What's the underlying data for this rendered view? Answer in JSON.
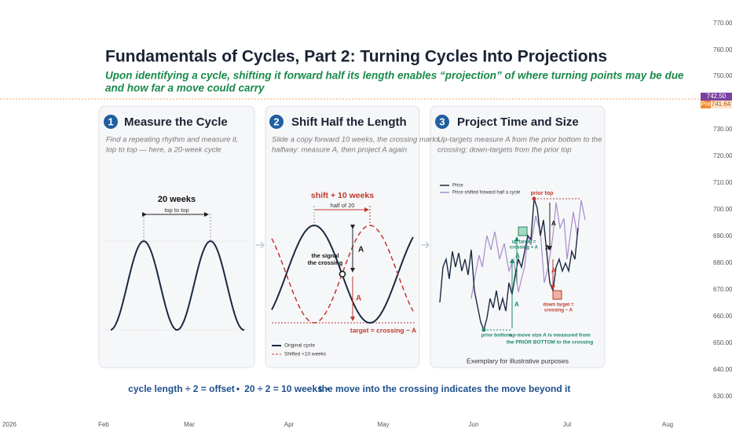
{
  "header": {
    "title": "Fundamentals of Cycles, Part 2: Turning Cycles Into Projections",
    "subtitle_lines": [
      "Upon identifying a cycle, shifting it forward half its length enables “projection” of where turning points may be due",
      "and how far a move could carry"
    ]
  },
  "panels": [
    {
      "number": "1",
      "title": "Measure the Cycle",
      "description": [
        "Find a repeating rhythm and measure it,",
        "top to top — here, a 20-week cycle"
      ],
      "labels": {
        "length": "20 weeks",
        "span": "top to top"
      }
    },
    {
      "number": "2",
      "title": "Shift Half the Length",
      "description": [
        "Slide a copy forward 10 weeks, the crossing marks",
        "halfway: measure A, then project A again"
      ],
      "labels": {
        "shift": "shift + 10 weeks",
        "half": "half of 20",
        "signal": [
          "the signal",
          "the crossing"
        ],
        "a_upper": "A",
        "a_lower": "A",
        "target": "target = crossing − A"
      },
      "legend": [
        "Original cycle",
        "Shifted +10 weeks"
      ]
    },
    {
      "number": "3",
      "title": "Project Time and Size",
      "description": [
        "Up-targets measure A from the prior bottom to the",
        "crossing; down-targets from the prior top"
      ],
      "legend": [
        "Price",
        "Price shifted forward half a cycle"
      ],
      "labels": {
        "prior_top": "prior top",
        "up_target": [
          "up target =",
          "crossing + A"
        ],
        "down_target": [
          "down target =",
          "crossing − A"
        ],
        "prior_bottom": "prior bottom",
        "measure_note": [
          "up-move size A is measured from",
          "the PRIOR BOTTOM to the crossing"
        ],
        "a_marks": [
          "A",
          "A",
          "A",
          "A",
          "A"
        ]
      },
      "footnote": "Exemplary for illustrative purposes"
    }
  ],
  "footer": [
    "cycle length ÷ 2 = offset",
    "•",
    "20 ÷ 2 = 10 weeks",
    "•",
    "the move into the crossing indicates the move beyond it"
  ],
  "price_axis": [
    "770.00",
    "760.00",
    "750.00",
    "730.00",
    "720.00",
    "710.00",
    "700.00",
    "690.00",
    "680.00",
    "670.00",
    "660.00",
    "650.00",
    "640.00",
    "630.00"
  ],
  "price_tags": {
    "last": "742.50",
    "pre_label": "Pre",
    "pre": "741.64"
  },
  "time_axis": [
    "2026",
    "Feb",
    "Mar",
    "Apr",
    "May",
    "Jun",
    "Jul",
    "Aug"
  ]
}
